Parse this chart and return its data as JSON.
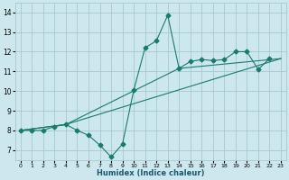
{
  "xlabel": "Humidex (Indice chaleur)",
  "background_color": "#cce8ee",
  "grid_color": "#a8c8d0",
  "line_color": "#1a7a6e",
  "xlim": [
    -0.5,
    23.5
  ],
  "ylim": [
    6.5,
    14.5
  ],
  "xticks": [
    0,
    1,
    2,
    3,
    4,
    5,
    6,
    7,
    8,
    9,
    10,
    11,
    12,
    13,
    14,
    15,
    16,
    17,
    18,
    19,
    20,
    21,
    22,
    23
  ],
  "yticks": [
    7,
    8,
    9,
    10,
    11,
    12,
    13,
    14
  ],
  "line1_x": [
    0,
    1,
    2,
    3,
    4,
    5,
    6,
    7,
    8,
    9,
    10,
    11,
    12,
    13,
    14,
    15,
    16,
    17,
    18,
    19,
    20,
    21,
    22
  ],
  "line1_y": [
    8.0,
    8.0,
    8.0,
    8.2,
    8.3,
    8.0,
    7.75,
    7.25,
    6.65,
    7.3,
    10.05,
    12.2,
    12.55,
    13.85,
    11.15,
    11.5,
    11.6,
    11.55,
    11.6,
    12.0,
    12.0,
    11.1,
    11.65
  ],
  "line2_x": [
    0,
    4,
    23
  ],
  "line2_y": [
    8.0,
    8.3,
    11.65
  ],
  "line3_x": [
    0,
    4,
    14,
    23
  ],
  "line3_y": [
    8.0,
    8.3,
    11.15,
    11.65
  ]
}
